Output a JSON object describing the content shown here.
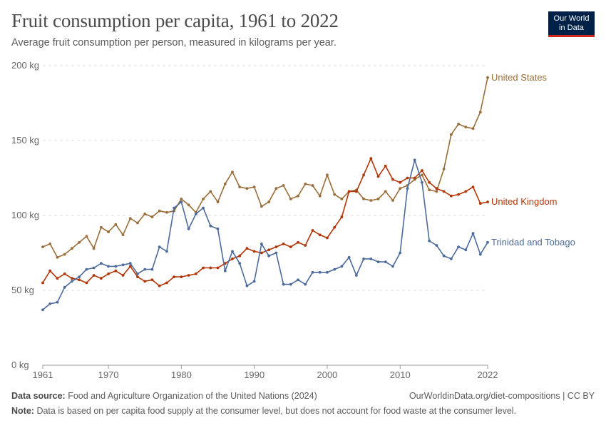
{
  "header": {
    "title": "Fruit consumption per capita, 1961 to 2022",
    "subtitle": "Average fruit consumption per person, measured in kilograms per year.",
    "logo_line1": "Our World",
    "logo_line2": "in Data"
  },
  "footer": {
    "source_label": "Data source:",
    "source_text": "Food and Agriculture Organization of the United Nations (2024)",
    "url_license": "OurWorldinData.org/diet-compositions | CC BY",
    "note_label": "Note:",
    "note_text": "Data is based on per capita food supply at the consumer level, but does not account for food waste at the consumer level."
  },
  "colors": {
    "grid": "#dddddd",
    "axis": "#999999",
    "tick_text": "#666666"
  },
  "chart_data": {
    "type": "line",
    "title": "Fruit consumption per capita, 1961 to 2022",
    "subtitle": "Average fruit consumption per person, measured in kilograms per year.",
    "xlabel": "",
    "ylabel": "",
    "xlim": [
      1961,
      2022
    ],
    "ylim": [
      0,
      200
    ],
    "grid": true,
    "legend": "right-labels",
    "x_ticks": [
      {
        "value": 1961,
        "label": "1961"
      },
      {
        "value": 1970,
        "label": "1970"
      },
      {
        "value": 1980,
        "label": "1980"
      },
      {
        "value": 1990,
        "label": "1990"
      },
      {
        "value": 2000,
        "label": "2000"
      },
      {
        "value": 2010,
        "label": "2010"
      },
      {
        "value": 2022,
        "label": "2022"
      }
    ],
    "y_ticks": [
      {
        "value": 0,
        "label": "0 kg"
      },
      {
        "value": 50,
        "label": "50 kg"
      },
      {
        "value": 100,
        "label": "100 kg"
      },
      {
        "value": 150,
        "label": "150 kg"
      },
      {
        "value": 200,
        "label": "200 kg"
      }
    ],
    "x": [
      1961,
      1962,
      1963,
      1964,
      1965,
      1966,
      1967,
      1968,
      1969,
      1970,
      1971,
      1972,
      1973,
      1974,
      1975,
      1976,
      1977,
      1978,
      1979,
      1980,
      1981,
      1982,
      1983,
      1984,
      1985,
      1986,
      1987,
      1988,
      1989,
      1990,
      1991,
      1992,
      1993,
      1994,
      1995,
      1996,
      1997,
      1998,
      1999,
      2000,
      2001,
      2002,
      2003,
      2004,
      2005,
      2006,
      2007,
      2008,
      2009,
      2010,
      2011,
      2012,
      2013,
      2014,
      2015,
      2016,
      2017,
      2018,
      2019,
      2020,
      2021,
      2022
    ],
    "series": [
      {
        "name": "United States",
        "color": "#9a6e3a",
        "values": [
          79,
          81,
          72,
          74,
          78,
          82,
          86,
          78,
          92,
          89,
          94,
          87,
          98,
          95,
          101,
          99,
          103,
          102,
          103,
          111,
          107,
          102,
          111,
          116,
          109,
          121,
          129,
          119,
          118,
          119,
          106,
          109,
          118,
          120,
          111,
          113,
          121,
          120,
          113,
          127,
          114,
          111,
          116,
          117,
          111,
          110,
          111,
          116,
          110,
          118,
          120,
          124,
          127,
          117,
          116,
          131,
          154,
          161,
          159,
          158,
          169,
          192
        ]
      },
      {
        "name": "United Kingdom",
        "color": "#b13507",
        "values": [
          55,
          63,
          58,
          61,
          58,
          57,
          55,
          60,
          58,
          61,
          63,
          60,
          66,
          59,
          56,
          57,
          53,
          55,
          59,
          59,
          60,
          61,
          65,
          65,
          65,
          68,
          71,
          73,
          78,
          76,
          75,
          77,
          79,
          81,
          79,
          82,
          80,
          90,
          87,
          85,
          92,
          99,
          116,
          116,
          127,
          138,
          126,
          133,
          124,
          122,
          125,
          125,
          130,
          122,
          118,
          116,
          113,
          114,
          116,
          119,
          108,
          109
        ]
      },
      {
        "name": "Trinidad and Tobago",
        "color": "#4c6a9c",
        "values": [
          37,
          41,
          42,
          52,
          56,
          59,
          64,
          65,
          68,
          66,
          66,
          67,
          68,
          61,
          64,
          64,
          79,
          76,
          105,
          109,
          91,
          101,
          105,
          93,
          91,
          63,
          76,
          68,
          53,
          56,
          81,
          73,
          75,
          54,
          54,
          57,
          54,
          62,
          62,
          62,
          64,
          66,
          72,
          60,
          71,
          71,
          69,
          69,
          66,
          75,
          118,
          137,
          122,
          83,
          80,
          73,
          71,
          79,
          77,
          88,
          74,
          82
        ]
      }
    ]
  }
}
